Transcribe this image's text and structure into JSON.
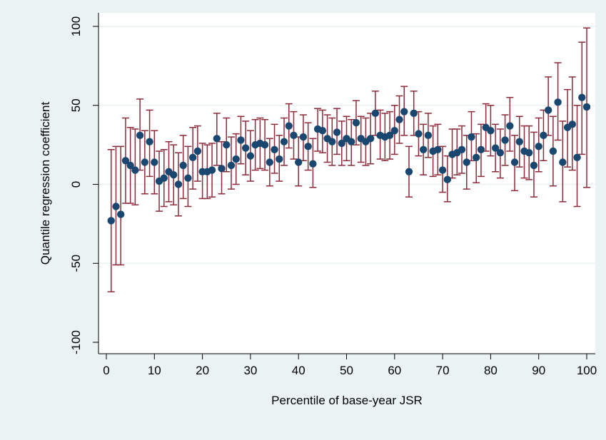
{
  "colors": {
    "outer_background": "#eaf2f3",
    "plot_background": "#ffffff",
    "gridline": "#e9f1f2",
    "errorbar": "#8b2b3a",
    "point": "#1a476f",
    "axis": "#000000"
  },
  "chart_data": {
    "type": "scatter",
    "xlabel": "Percentile of base-year JSR",
    "ylabel": "Quantile regression coefficient",
    "xlim": [
      0,
      100
    ],
    "ylim": [
      -100,
      100
    ],
    "xticks": [
      "0",
      "10",
      "20",
      "30",
      "40",
      "50",
      "60",
      "70",
      "80",
      "90",
      "100"
    ],
    "yticks": [
      "-100",
      "-50",
      "0",
      "50",
      "100"
    ],
    "grid": "horizontal",
    "series": [
      {
        "x": [
          1,
          2,
          3,
          4,
          5,
          6,
          7,
          8,
          9,
          10,
          11,
          12,
          13,
          14,
          15,
          16,
          17,
          18,
          19,
          20,
          21,
          22,
          23,
          24,
          25,
          26,
          27,
          28,
          29,
          30,
          31,
          32,
          33,
          34,
          35,
          36,
          37,
          38,
          39,
          40,
          41,
          42,
          43,
          44,
          45,
          46,
          47,
          48,
          49,
          50,
          51,
          52,
          53,
          54,
          55,
          56,
          57,
          58,
          59,
          60,
          61,
          62,
          63,
          64,
          65,
          66,
          67,
          68,
          69,
          70,
          71,
          72,
          73,
          74,
          75,
          76,
          77,
          78,
          79,
          80,
          81,
          82,
          83,
          84,
          85,
          86,
          87,
          88,
          89,
          90,
          91,
          92,
          93,
          94,
          95,
          96,
          97,
          98,
          99,
          100
        ],
        "y": [
          -23,
          -14,
          -19,
          15,
          12,
          9,
          31,
          14,
          27,
          14,
          2,
          4,
          8,
          6,
          0,
          12,
          4,
          17,
          21,
          8,
          8,
          9,
          29,
          10,
          25,
          12,
          16,
          28,
          23,
          18,
          25,
          26,
          25,
          14,
          22,
          16,
          27,
          37,
          31,
          14,
          30,
          24,
          13,
          35,
          34,
          29,
          27,
          33,
          26,
          29,
          27,
          39,
          29,
          27,
          29,
          45,
          31,
          30,
          31,
          34,
          41,
          46,
          8,
          45,
          32,
          22,
          31,
          21,
          22,
          9,
          3,
          19,
          20,
          22,
          14,
          30,
          17,
          22,
          36,
          34,
          23,
          20,
          28,
          37,
          14,
          27,
          21,
          20,
          12,
          24,
          31,
          47,
          21,
          52,
          14,
          36,
          38,
          17,
          55,
          49
        ],
        "lo": [
          -68,
          -51,
          -51,
          -12,
          -12,
          -13,
          9,
          -6,
          5,
          -6,
          -17,
          -14,
          -11,
          -13,
          -20,
          -9,
          -14,
          -3,
          2,
          -9,
          -9,
          -8,
          12,
          -6,
          8,
          -3,
          0,
          13,
          6,
          2,
          9,
          10,
          9,
          -1,
          7,
          2,
          12,
          23,
          16,
          -1,
          15,
          9,
          -2,
          21,
          20,
          14,
          12,
          19,
          12,
          15,
          12,
          25,
          14,
          12,
          13,
          31,
          16,
          15,
          16,
          19,
          26,
          31,
          -8,
          31,
          18,
          6,
          17,
          5,
          6,
          -5,
          -11,
          4,
          6,
          7,
          -3,
          15,
          1,
          5,
          21,
          18,
          8,
          4,
          12,
          21,
          -4,
          11,
          4,
          3,
          -8,
          8,
          15,
          31,
          -1,
          28,
          -11,
          11,
          9,
          -14,
          19,
          -2
        ],
        "hi": [
          22,
          24,
          24,
          42,
          36,
          35,
          54,
          34,
          47,
          34,
          21,
          22,
          27,
          25,
          20,
          31,
          24,
          36,
          37,
          26,
          25,
          26,
          45,
          27,
          42,
          30,
          32,
          43,
          40,
          34,
          41,
          42,
          41,
          29,
          38,
          31,
          42,
          51,
          46,
          30,
          44,
          39,
          29,
          48,
          47,
          44,
          42,
          48,
          40,
          43,
          41,
          53,
          43,
          42,
          45,
          59,
          47,
          45,
          46,
          50,
          56,
          62,
          24,
          59,
          46,
          38,
          45,
          37,
          38,
          24,
          18,
          35,
          35,
          37,
          31,
          46,
          32,
          38,
          51,
          50,
          38,
          35,
          44,
          55,
          31,
          43,
          37,
          37,
          33,
          42,
          47,
          68,
          43,
          77,
          40,
          60,
          68,
          50,
          90,
          99
        ]
      }
    ]
  }
}
